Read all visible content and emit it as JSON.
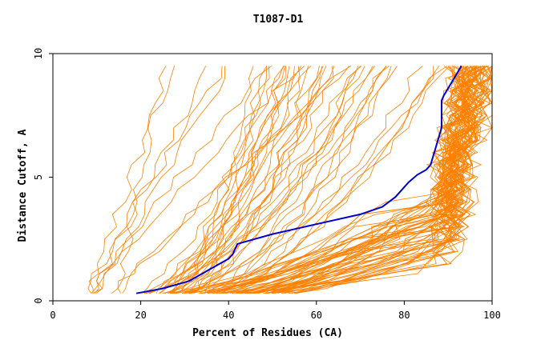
{
  "chart_data": {
    "type": "line",
    "title": "T1087-D1",
    "xlabel": "Percent of Residues (CA)",
    "ylabel": "Distance Cutoff, A",
    "xlim": [
      0,
      100
    ],
    "ylim": [
      0,
      10
    ],
    "x_ticks": [
      "0",
      "20",
      "40",
      "60",
      "80",
      "100"
    ],
    "y_ticks": [
      "0",
      "5",
      "10"
    ],
    "grid": false,
    "legend": "none",
    "colors": {
      "highlight": "#0000cc",
      "others": "#ff8000",
      "frame": "#000000"
    },
    "highlight_series": {
      "x": [
        19,
        25,
        31,
        35,
        38,
        40,
        41,
        42,
        44,
        50,
        60,
        70,
        75,
        78,
        81,
        83,
        85,
        86,
        86.5,
        87,
        87.5,
        88,
        88.5,
        88.5,
        89,
        90,
        91,
        92,
        93
      ],
      "y": [
        0.3,
        0.5,
        0.8,
        1.2,
        1.5,
        1.7,
        1.9,
        2.3,
        2.4,
        2.7,
        3.1,
        3.5,
        3.8,
        4.2,
        4.8,
        5.1,
        5.3,
        5.5,
        5.8,
        6.1,
        6.4,
        6.7,
        7.0,
        8.1,
        8.3,
        8.6,
        8.9,
        9.2,
        9.5
      ]
    },
    "other_series_count": 110
  }
}
